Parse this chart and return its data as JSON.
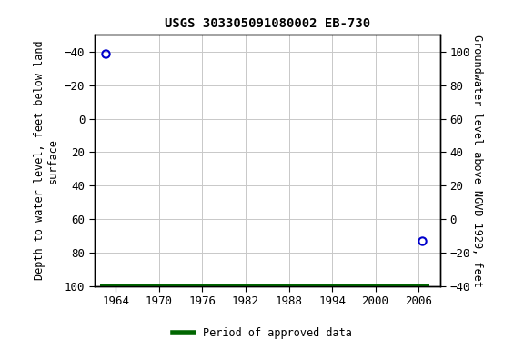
{
  "title": "USGS 303305091080002 EB-730",
  "left_ylabel": "Depth to water level, feet below land\nsurface",
  "right_ylabel": "Groundwater level above NGVD 1929, feet",
  "xlim": [
    1961,
    2009
  ],
  "ylim_left": [
    100,
    -50
  ],
  "ylim_right": [
    -40,
    110
  ],
  "xticks": [
    1964,
    1970,
    1976,
    1982,
    1988,
    1994,
    2000,
    2006
  ],
  "yticks_left": [
    100,
    80,
    60,
    40,
    20,
    0,
    -20,
    -40
  ],
  "yticks_right": [
    -40,
    -20,
    0,
    20,
    40,
    60,
    80,
    100
  ],
  "point1_x": 1962.5,
  "point1_y": -39,
  "point2_x": 2006.5,
  "point2_y": 73,
  "point_color": "#0000cc",
  "approved_x1": 1961.8,
  "approved_x2": 2007.5,
  "approved_y": 100,
  "approved_color": "#006600",
  "legend_label": "Period of approved data",
  "background_color": "#ffffff",
  "grid_color": "#c8c8c8",
  "title_fontsize": 10,
  "label_fontsize": 8.5,
  "tick_fontsize": 9
}
